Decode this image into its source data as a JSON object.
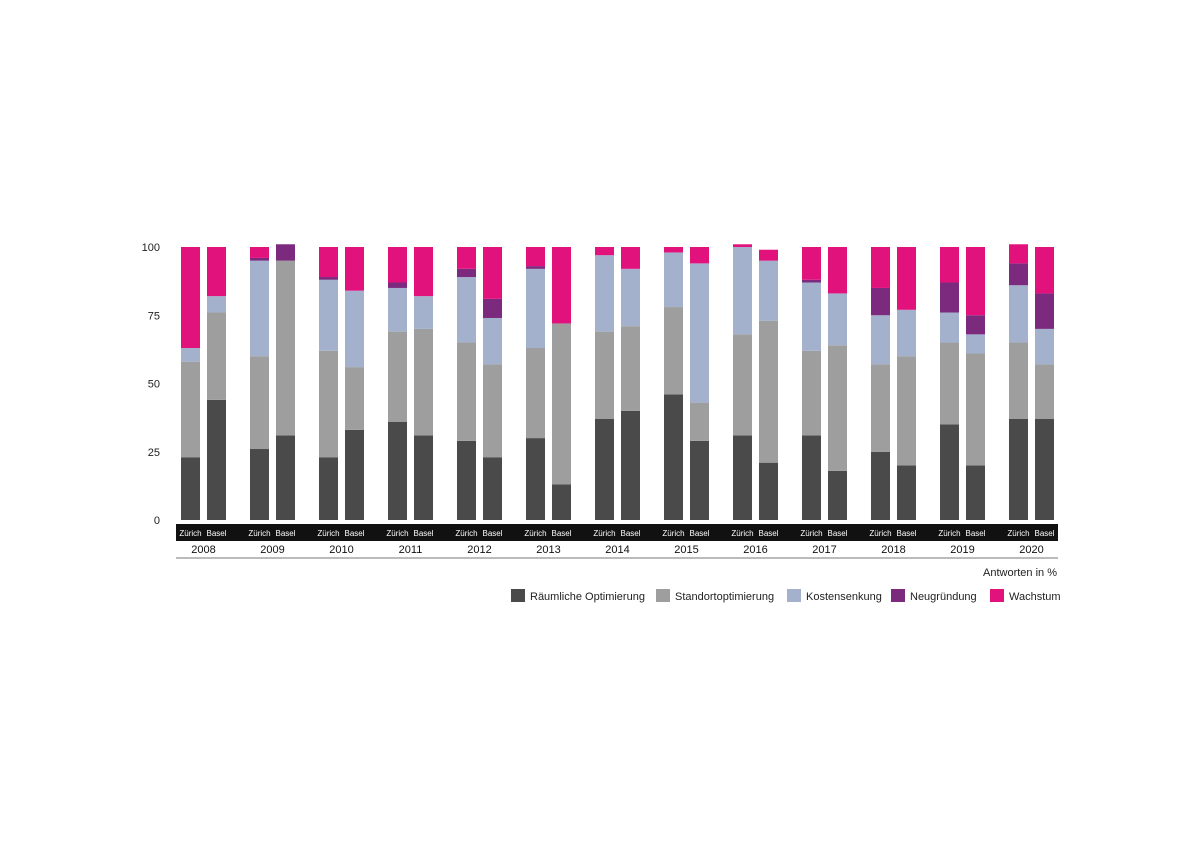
{
  "chart_data": {
    "type": "bar",
    "stacked": true,
    "groups": [
      "2008",
      "2009",
      "2010",
      "2011",
      "2012",
      "2013",
      "2014",
      "2015",
      "2016",
      "2017",
      "2018",
      "2019",
      "2020"
    ],
    "categories": [
      "Zürich",
      "Basel"
    ],
    "y_ticks": [
      "100",
      "75",
      "50",
      "25",
      "0"
    ],
    "ylim": [
      0,
      100
    ],
    "unit_note": "Antworten in %",
    "legend_position": "bottom-right",
    "series": [
      {
        "name": "Räumliche Optimierung",
        "color": "#4a4a4a",
        "values": [
          [
            23,
            44
          ],
          [
            26,
            31
          ],
          [
            23,
            33
          ],
          [
            36,
            31
          ],
          [
            29,
            23
          ],
          [
            30,
            13
          ],
          [
            37,
            40
          ],
          [
            46,
            29
          ],
          [
            31,
            21
          ],
          [
            31,
            18
          ],
          [
            25,
            20
          ],
          [
            35,
            20
          ],
          [
            37,
            37
          ]
        ]
      },
      {
        "name": "Standortoptimierung",
        "color": "#9e9e9e",
        "values": [
          [
            35,
            32
          ],
          [
            34,
            64
          ],
          [
            39,
            23
          ],
          [
            33,
            39
          ],
          [
            36,
            34
          ],
          [
            33,
            59
          ],
          [
            32,
            31
          ],
          [
            32,
            14
          ],
          [
            37,
            52
          ],
          [
            31,
            46
          ],
          [
            32,
            40
          ],
          [
            30,
            41
          ],
          [
            28,
            20
          ]
        ]
      },
      {
        "name": "Kostensenkung",
        "color": "#a3b1cc",
        "values": [
          [
            5,
            6
          ],
          [
            35,
            0
          ],
          [
            26,
            28
          ],
          [
            16,
            12
          ],
          [
            24,
            17
          ],
          [
            29,
            0
          ],
          [
            28,
            21
          ],
          [
            20,
            51
          ],
          [
            32,
            22
          ],
          [
            25,
            19
          ],
          [
            18,
            17
          ],
          [
            11,
            7
          ],
          [
            21,
            13
          ]
        ]
      },
      {
        "name": "Neugründung",
        "color": "#7b2a7e",
        "values": [
          [
            0,
            0
          ],
          [
            1,
            6
          ],
          [
            1,
            0
          ],
          [
            2,
            0
          ],
          [
            3,
            7
          ],
          [
            1,
            0
          ],
          [
            0,
            0
          ],
          [
            0,
            0
          ],
          [
            0,
            0
          ],
          [
            1,
            0
          ],
          [
            10,
            0
          ],
          [
            11,
            7
          ],
          [
            8,
            13
          ]
        ]
      },
      {
        "name": "Wachstum",
        "color": "#e2127d",
        "values": [
          [
            37,
            18
          ],
          [
            4,
            0
          ],
          [
            11,
            16
          ],
          [
            13,
            18
          ],
          [
            8,
            19
          ],
          [
            7,
            28
          ],
          [
            3,
            8
          ],
          [
            2,
            6
          ],
          [
            1,
            4
          ],
          [
            12,
            17
          ],
          [
            15,
            23
          ],
          [
            13,
            25
          ],
          [
            7,
            17
          ]
        ]
      }
    ]
  }
}
